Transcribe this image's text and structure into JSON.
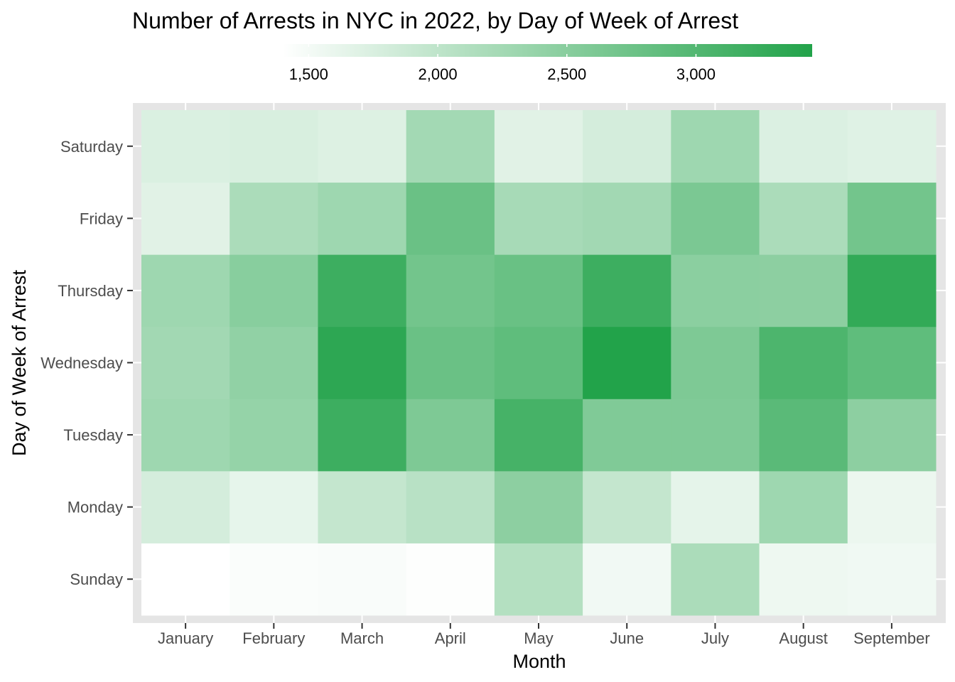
{
  "chart_data": {
    "type": "heatmap",
    "title": "Number of Arrests in NYC in 2022, by Day of Week of Arrest",
    "xlabel": "Month",
    "ylabel": "Day of Week of Arrest",
    "x_categories": [
      "January",
      "February",
      "March",
      "April",
      "May",
      "June",
      "July",
      "August",
      "September"
    ],
    "y_categories": [
      "Sunday",
      "Monday",
      "Tuesday",
      "Wednesday",
      "Thursday",
      "Friday",
      "Saturday"
    ],
    "values": [
      [
        1400,
        1450,
        1460,
        1420,
        2100,
        1530,
        2180,
        1560,
        1540
      ],
      [
        1800,
        1630,
        1950,
        2060,
        2460,
        1950,
        1640,
        2300,
        1580
      ],
      [
        2300,
        2380,
        3200,
        2600,
        3120,
        2580,
        2580,
        2930,
        2460
      ],
      [
        2260,
        2420,
        3350,
        2780,
        2880,
        3450,
        2600,
        3050,
        2880
      ],
      [
        2300,
        2500,
        3200,
        2700,
        2790,
        3200,
        2480,
        2460,
        3300
      ],
      [
        1680,
        2180,
        2300,
        2780,
        2220,
        2260,
        2620,
        2180,
        2700
      ],
      [
        1740,
        1760,
        1720,
        2250,
        1680,
        1800,
        2300,
        1730,
        1700
      ]
    ],
    "color_scale": {
      "low_color": "#ffffff",
      "high_color": "#22a34a",
      "domain": [
        1400,
        3450
      ],
      "legend_ticks": [
        "1,500",
        "2,000",
        "2,500",
        "3,000"
      ],
      "legend_tick_values": [
        1500,
        2000,
        2500,
        3000
      ],
      "legend_position": "top"
    },
    "panel_background": "#e5e5e5",
    "grid": true
  }
}
